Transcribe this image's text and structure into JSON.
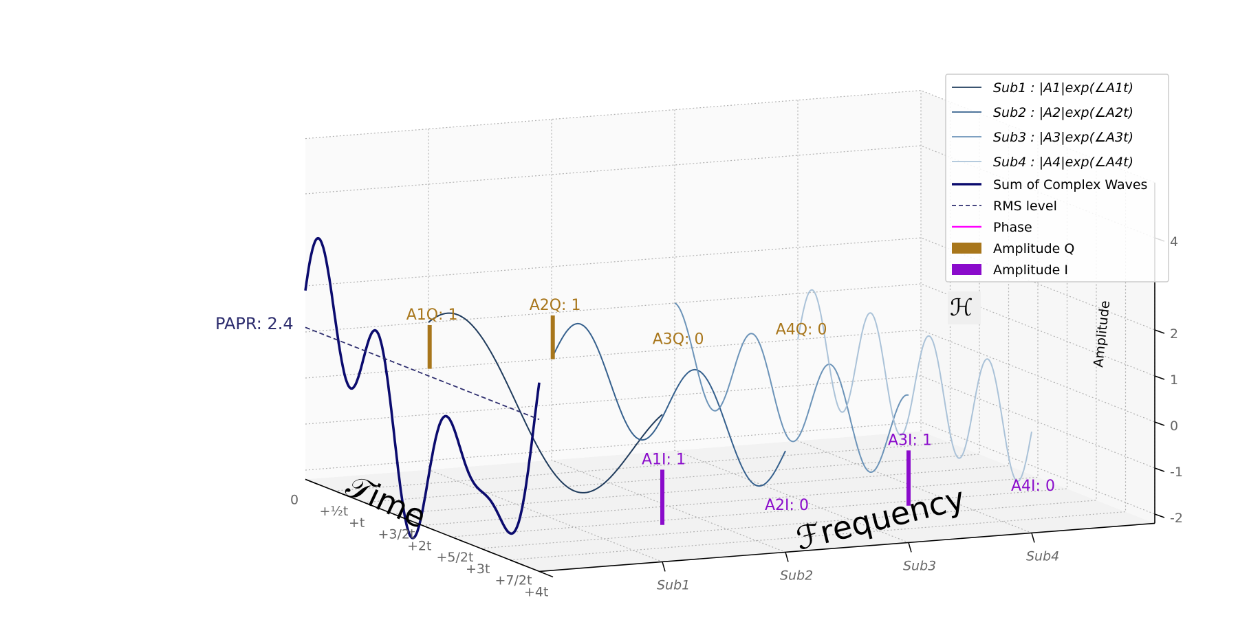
{
  "chart_data": {
    "type": "line",
    "projection": "3d",
    "x_axis": {
      "label": "𝒯ime",
      "ticks": [
        "0",
        "+½t",
        "+t",
        "+3/2t",
        "+2t",
        "+5/2t",
        "+3t",
        "+7/2t",
        "+4t"
      ]
    },
    "y_axis": {
      "label": "ℱrequency",
      "ticks": [
        "Sub1",
        "Sub2",
        "Sub3",
        "Sub4"
      ]
    },
    "z_axis": {
      "label": "Amplitude",
      "ticks": [
        "-2",
        "-1",
        "0",
        "1",
        "2",
        "4"
      ],
      "range": [
        -2,
        4
      ]
    },
    "series": [
      {
        "name": "Sub1 : |A1|exp(∠A1t)",
        "subcarrier": 1,
        "cycles": 1,
        "amp_i": 1,
        "amp_q": 1,
        "color": "#1f3b5c"
      },
      {
        "name": "Sub2 : |A2|exp(∠A2t)",
        "subcarrier": 2,
        "cycles": 2,
        "amp_i": 0,
        "amp_q": 1,
        "color": "#35608d"
      },
      {
        "name": "Sub3 : |A3|exp(∠A3t)",
        "subcarrier": 3,
        "cycles": 3,
        "amp_i": 1,
        "amp_q": 0,
        "color": "#6b93b8"
      },
      {
        "name": "Sub4 : |A4|exp(∠A4t)",
        "subcarrier": 4,
        "cycles": 4,
        "amp_i": 0,
        "amp_q": 0,
        "color": "#aac2d8"
      }
    ],
    "sum_wave": {
      "name": "Sum of Complex Waves",
      "color": "#0b0b6e"
    },
    "rms": {
      "name": "RMS level",
      "papr_label": "PAPR: 2.4",
      "papr": 2.4,
      "color": "#2d2d6e"
    },
    "phase": {
      "name": "Phase",
      "color": "#ff00ff"
    },
    "amplitude_q": {
      "name": "Amplitude Q",
      "color": "#a8761b",
      "labels": [
        "A1Q: 1",
        "A2Q: 1",
        "A3Q: 0",
        "A4Q: 0"
      ],
      "values": [
        1,
        1,
        0,
        0
      ]
    },
    "amplitude_i": {
      "name": "Amplitude I",
      "color": "#8a0bcb",
      "labels": [
        "A1I: 1",
        "A2I: 0",
        "A3I: 1",
        "A4I: 0"
      ],
      "values": [
        1,
        0,
        1,
        0
      ]
    },
    "legend_position": "top-right",
    "grid": true,
    "corner_glyph": "ℋ"
  }
}
